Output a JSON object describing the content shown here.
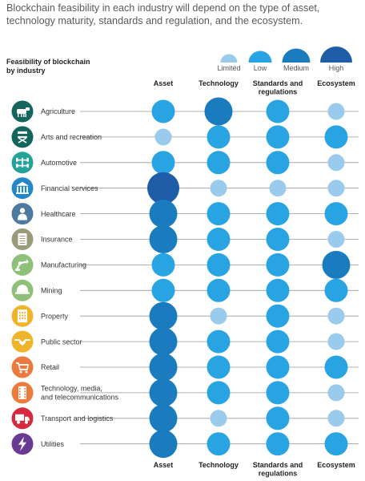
{
  "title_lines": [
    "Blockchain feasibility in each industry will depend on the type of asset,",
    "technology maturity, standards and regulation, and the ecosystem."
  ],
  "subtitle_lines": [
    "Feasibility of blockchain",
    "by industry"
  ],
  "colors": {
    "Limited": "#9bcbec",
    "Low": "#29a4e2",
    "Medium": "#1a7bbf",
    "High": "#1f5da8",
    "line": "#9a9a9a",
    "label_text": "#333333"
  },
  "icon_colors": {
    "Agriculture": "#14655e",
    "Arts and recreation": "#14655e",
    "Automotive": "#25a39a",
    "Financial services": "#2388c8",
    "Healthcare": "#4f7aa0",
    "Insurance": "#9a9a78",
    "Manufacturing": "#8fc07a",
    "Mining": "#8fc07a",
    "Property": "#f0b42a",
    "Public sector": "#f0b42a",
    "Retail": "#ec7a3c",
    "Technology, media, and telecommunications": "#ec7a3c",
    "Transport and logistics": "#d6293e",
    "Utilities": "#6a3a93"
  },
  "icon_names": {
    "Agriculture": "cow-icon",
    "Arts and recreation": "directors-chair-icon",
    "Automotive": "car-axle-icon",
    "Financial services": "bank-icon",
    "Healthcare": "doctor-icon",
    "Insurance": "document-icon",
    "Manufacturing": "robot-arm-icon",
    "Mining": "hard-hat-icon",
    "Property": "building-icon",
    "Public sector": "handshake-icon",
    "Retail": "shopping-cart-icon",
    "Technology, media, and telecommunications": "film-strip-icon",
    "Transport and logistics": "truck-icon",
    "Utilities": "lightning-bolt-icon"
  },
  "chart_data": {
    "type": "table",
    "scale": [
      "Limited",
      "Low",
      "Medium",
      "High"
    ],
    "columns": [
      "Asset",
      "Technology",
      "Standards and regulations",
      "Ecosystem"
    ],
    "column_label_lines": [
      [
        "Asset"
      ],
      [
        "Technology"
      ],
      [
        "Standards and",
        "regulations"
      ],
      [
        "Ecosystem"
      ]
    ],
    "rows": [
      {
        "industry": "Agriculture",
        "label_lines": [
          "Agriculture"
        ],
        "values": [
          "Low",
          "Medium",
          "Low",
          "Limited"
        ]
      },
      {
        "industry": "Arts and recreation",
        "label_lines": [
          "Arts and recreation"
        ],
        "values": [
          "Limited",
          "Low",
          "Low",
          "Low"
        ]
      },
      {
        "industry": "Automotive",
        "label_lines": [
          "Automotive"
        ],
        "values": [
          "Low",
          "Low",
          "Low",
          "Limited"
        ]
      },
      {
        "industry": "Financial services",
        "label_lines": [
          "Financial services"
        ],
        "values": [
          "High",
          "Limited",
          "Limited",
          "Limited"
        ]
      },
      {
        "industry": "Healthcare",
        "label_lines": [
          "Healthcare"
        ],
        "values": [
          "Medium",
          "Low",
          "Low",
          "Low"
        ]
      },
      {
        "industry": "Insurance",
        "label_lines": [
          "Insurance"
        ],
        "values": [
          "Medium",
          "Low",
          "Low",
          "Limited"
        ]
      },
      {
        "industry": "Manufacturing",
        "label_lines": [
          "Manufacturing"
        ],
        "values": [
          "Low",
          "Low",
          "Low",
          "Medium"
        ]
      },
      {
        "industry": "Mining",
        "label_lines": [
          "Mining"
        ],
        "values": [
          "Low",
          "Low",
          "Low",
          "Low"
        ]
      },
      {
        "industry": "Property",
        "label_lines": [
          "Property"
        ],
        "values": [
          "Medium",
          "Limited",
          "Low",
          "Limited"
        ]
      },
      {
        "industry": "Public sector",
        "label_lines": [
          "Public sector"
        ],
        "values": [
          "Medium",
          "Low",
          "Low",
          "Limited"
        ]
      },
      {
        "industry": "Retail",
        "label_lines": [
          "Retail"
        ],
        "values": [
          "Medium",
          "Low",
          "Low",
          "Low"
        ]
      },
      {
        "industry": "Technology, media, and telecommunications",
        "label_lines": [
          "Technology, media,",
          "and telecommunications"
        ],
        "values": [
          "Medium",
          "Low",
          "Low",
          "Limited"
        ]
      },
      {
        "industry": "Transport and logistics",
        "label_lines": [
          "Transport and logistics"
        ],
        "values": [
          "Medium",
          "Limited",
          "Low",
          "Limited"
        ]
      },
      {
        "industry": "Utilities",
        "label_lines": [
          "Utilities"
        ],
        "values": [
          "Medium",
          "Low",
          "Low",
          "Low"
        ]
      }
    ]
  }
}
